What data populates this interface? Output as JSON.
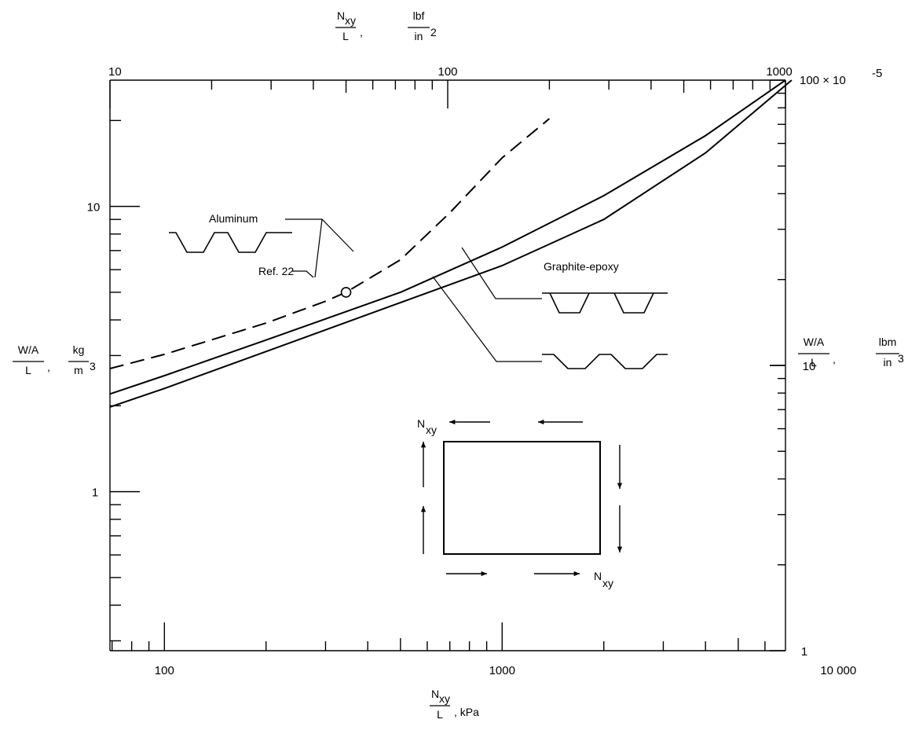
{
  "chart_data": {
    "type": "line",
    "title": "",
    "scale": "log-log",
    "grid": false,
    "bottom_axis": {
      "unit": "kPa",
      "range": [
        69,
        6900
      ],
      "tick_labels": [
        "100",
        "1000",
        "10 000"
      ]
    },
    "top_axis": {
      "unit": "lbf/in^2",
      "range": [
        10,
        1000
      ],
      "tick_labels": [
        "10",
        "100",
        "1000"
      ]
    },
    "left_axis": {
      "unit": "kg/m^3",
      "range": [
        0.277,
        27.7
      ],
      "tick_labels": [
        "1",
        "10"
      ]
    },
    "right_axis": {
      "unit": "lbm/in^3",
      "range": [
        1e-05,
        0.001
      ],
      "tick_labels": [
        "1",
        "10",
        "100 × 10"
      ],
      "exponent": "-5"
    },
    "axis_labels": {
      "x_num": "N",
      "x_sub": "xy",
      "x_den": "L",
      "x_unit_bottom": "kPa",
      "x_unit_top_num": "lbf",
      "x_unit_top_den": "in",
      "x_unit_top_exp": "2",
      "y_num": "W/A",
      "y_den": "L",
      "y_unit_left_num": "kg",
      "y_unit_left_den": "m",
      "y_unit_left_exp": "3",
      "y_unit_right_num": "lbm",
      "y_unit_right_den": "in",
      "y_unit_right_exp": "3"
    },
    "series": [
      {
        "name": "Aluminum",
        "style": "dashed",
        "x": [
          69,
          100,
          200,
          300,
          345,
          500,
          700,
          1000,
          1380
        ],
        "y": [
          2.7,
          3.03,
          3.9,
          4.65,
          5.0,
          6.5,
          9.5,
          14.8,
          20.3
        ]
      },
      {
        "name": "Graphite-epoxy (hat stiffened)",
        "style": "solid",
        "x": [
          69,
          100,
          200,
          500,
          1000,
          2000,
          4000,
          6900
        ],
        "y": [
          2.2,
          2.55,
          3.4,
          5.0,
          7.2,
          10.9,
          17.7,
          27.7
        ]
      },
      {
        "name": "Graphite-epoxy (corrugated)",
        "style": "solid",
        "x": [
          69,
          100,
          200,
          500,
          1000,
          2000,
          4000,
          7200
        ],
        "y": [
          1.98,
          2.3,
          3.1,
          4.6,
          6.2,
          9.0,
          15.4,
          27.7
        ]
      }
    ],
    "reference_point": {
      "label": "Ref. 22",
      "x": 345,
      "y": 5.0
    },
    "annotations": {
      "aluminum": "Aluminum",
      "graphite": "Graphite-epoxy",
      "ref": "Ref. 22",
      "nxy": "N",
      "nxy_sub": "xy"
    }
  }
}
